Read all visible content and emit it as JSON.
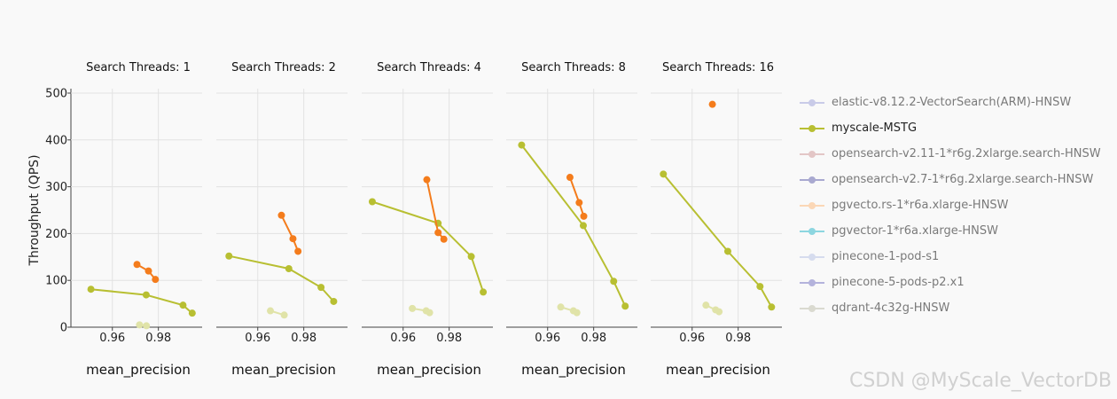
{
  "chart_data": {
    "type": "line",
    "ylabel": "Throughput (QPS)",
    "ylim": [
      0,
      500
    ],
    "yticks": [
      0,
      100,
      200,
      300,
      400,
      500
    ],
    "xlim": [
      0.942,
      0.999
    ],
    "xticks": [
      0.96,
      0.98
    ],
    "xtick_labels": [
      "0.96",
      "0.98"
    ],
    "grid": true,
    "legend_position": "right",
    "panels": [
      {
        "title": "Search Threads: 1",
        "xlabel": "mean_precision",
        "series": [
          {
            "name": "myscale-MSTG",
            "color": "#b8bf32",
            "x": [
              0.9507,
              0.9747,
              0.9907,
              0.9947
            ],
            "y": [
              81,
              69,
              47,
              30
            ]
          },
          {
            "name": "myscale-MSTG",
            "color": "#f47c1c",
            "x": [
              0.9707,
              0.9757,
              0.9787
            ],
            "y": [
              134,
              120,
              102
            ]
          },
          {
            "name": "qdrant-4c32g-HNSW",
            "color": "#e0e3a8",
            "x": [
              0.9718,
              0.9748
            ],
            "y": [
              5,
              3
            ]
          }
        ]
      },
      {
        "title": "Search Threads: 2",
        "xlabel": "mean_precision",
        "series": [
          {
            "name": "myscale-MSTG",
            "color": "#b8bf32",
            "x": [
              0.9475,
              0.9735,
              0.9875,
              0.993
            ],
            "y": [
              152,
              125,
              85,
              55
            ]
          },
          {
            "name": "myscale-MSTG",
            "color": "#f47c1c",
            "x": [
              0.9703,
              0.9753,
              0.9775
            ],
            "y": [
              239,
              189,
              162
            ]
          },
          {
            "name": "qdrant-4c32g-HNSW",
            "color": "#e0e3a8",
            "x": [
              0.9655,
              0.9715
            ],
            "y": [
              35,
              26
            ]
          }
        ]
      },
      {
        "title": "Search Threads: 4",
        "xlabel": "mean_precision",
        "series": [
          {
            "name": "myscale-MSTG",
            "color": "#b8bf32",
            "x": [
              0.9466,
              0.9752,
              0.9896,
              0.9948
            ],
            "y": [
              268,
              222,
              151,
              75
            ]
          },
          {
            "name": "myscale-MSTG",
            "color": "#f47c1c",
            "x": [
              0.9703,
              0.9752,
              0.9777
            ],
            "y": [
              315,
              202,
              188
            ]
          },
          {
            "name": "qdrant-4c32g-HNSW",
            "color": "#e0e3a8",
            "x": [
              0.964,
              0.97,
              0.9715
            ],
            "y": [
              40,
              35,
              31
            ]
          }
        ]
      },
      {
        "title": "Search Threads: 8",
        "xlabel": "mean_precision",
        "series": [
          {
            "name": "myscale-MSTG",
            "color": "#b8bf32",
            "x": [
              0.9487,
              0.9755,
              0.9887,
              0.9937
            ],
            "y": [
              389,
              217,
              98,
              45
            ]
          },
          {
            "name": "myscale-MSTG",
            "color": "#f47c1c",
            "x": [
              0.9697,
              0.9737,
              0.9757
            ],
            "y": [
              320,
              266,
              237
            ]
          },
          {
            "name": "qdrant-4c32g-HNSW",
            "color": "#e0e3a8",
            "x": [
              0.9657,
              0.9712,
              0.9727
            ],
            "y": [
              43,
              35,
              31
            ]
          }
        ]
      },
      {
        "title": "Search Threads: 16",
        "xlabel": "mean_precision",
        "series": [
          {
            "name": "myscale-MSTG",
            "color": "#b8bf32",
            "x": [
              0.9475,
              0.9755,
              0.9895,
              0.9945
            ],
            "y": [
              327,
              162,
              87,
              43
            ]
          },
          {
            "name": "myscale-MSTG",
            "color": "#f47c1c",
            "x": [
              0.9688
            ],
            "y": [
              476
            ]
          },
          {
            "name": "qdrant-4c32g-HNSW",
            "color": "#e0e3a8",
            "x": [
              0.966,
              0.9702,
              0.9717
            ],
            "y": [
              47,
              37,
              33
            ]
          }
        ]
      }
    ],
    "legend": [
      {
        "name": "elastic-v8.12.2-VectorSearch(ARM)-HNSW",
        "color": "#c9cbe8",
        "active": false
      },
      {
        "name": "myscale-MSTG",
        "color": "#b8bf32",
        "active": true
      },
      {
        "name": "opensearch-v2.11-1*r6g.2xlarge.search-HNSW",
        "color": "#e3c6c6",
        "active": false
      },
      {
        "name": "opensearch-v2.7-1*r6g.2xlarge.search-HNSW",
        "color": "#a9a9d0",
        "active": false
      },
      {
        "name": "pgvecto.rs-1*r6a.xlarge-HNSW",
        "color": "#fbd7b6",
        "active": false
      },
      {
        "name": "pgvector-1*r6a.xlarge-HNSW",
        "color": "#8dd6e0",
        "active": false
      },
      {
        "name": "pinecone-1-pod-s1",
        "color": "#d6dcee",
        "active": false
      },
      {
        "name": "pinecone-5-pods-p2.x1",
        "color": "#b4b3dc",
        "active": false
      },
      {
        "name": "qdrant-4c32g-HNSW",
        "color": "#dadad0",
        "active": false
      }
    ]
  },
  "watermark": "CSDN @MyScale_VectorDB"
}
